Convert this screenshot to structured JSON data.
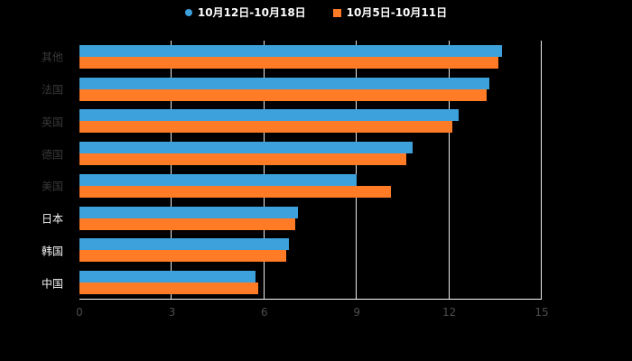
{
  "chart_data": {
    "type": "bar",
    "orientation": "horizontal",
    "title": "",
    "categories": [
      "其他",
      "法国",
      "英国",
      "德国",
      "美国",
      "日本",
      "韩国",
      "中国"
    ],
    "series": [
      {
        "name": "10月12日-10月18日",
        "color": "#3da2dc",
        "marker": "circle",
        "values": [
          13.7,
          13.3,
          12.3,
          10.8,
          9.0,
          7.1,
          6.8,
          5.7
        ]
      },
      {
        "name": "10月5日-10月11日",
        "color": "#ff7b26",
        "marker": "square",
        "values": [
          13.6,
          13.2,
          12.1,
          10.6,
          10.1,
          7.0,
          6.7,
          5.8
        ]
      }
    ],
    "x_ticks": [
      0,
      3,
      6,
      9,
      12,
      15
    ],
    "x_max": 15,
    "grid": true,
    "legend_position": "top",
    "category_label_muted": [
      true,
      true,
      true,
      true,
      true,
      false,
      false,
      false
    ],
    "styles": {
      "background": "#000000",
      "gridline_color": "#ececec",
      "axis_line_color": "#ffffff",
      "tick_label_color": "#4c4c4c",
      "category_label_muted_color": "#383838",
      "category_label_bright_color": "#f5f5f5",
      "legend_text_color": "#ffffff"
    }
  }
}
